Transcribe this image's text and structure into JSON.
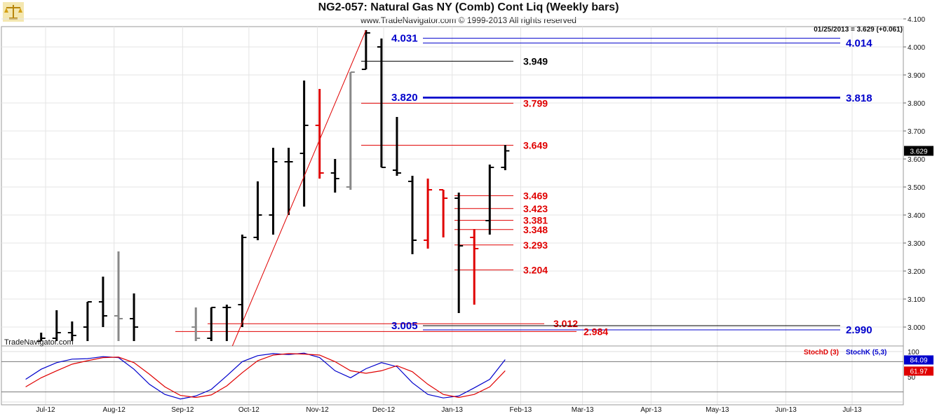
{
  "header": {
    "title": "NG2-057:  Natural Gas NY (Comb) Cont Liq  (Weekly bars)",
    "copyright": "www.TradeNavigator.com © 1999-2013 All rights reserved",
    "last_quote": "01/25/2013 = 3.629 (+0.061)",
    "watermark": "TradeNavigator.com",
    "logo_icon": "scales-icon"
  },
  "colors": {
    "up_bar": "#000000",
    "down_bar": "#e00000",
    "neutral_bar": "#888888",
    "blue_level": "#0000cc",
    "red_level": "#e00000",
    "stoch_d": "#e00000",
    "stoch_k": "#0000cc"
  },
  "chart_data": [
    {
      "type": "bar",
      "subtype": "ohlc",
      "title": "NG2-057:  Natural Gas NY (Comb) Cont Liq  (Weekly bars)",
      "y_axis": {
        "position": "right",
        "range": [
          2.95,
          4.1
        ],
        "ticks": [
          "3.000",
          "3.100",
          "3.200",
          "3.300",
          "3.400",
          "3.500",
          "3.600",
          "3.700",
          "3.800",
          "3.900",
          "4.000",
          "4.100"
        ]
      },
      "x_axis": {
        "ticks": [
          "Jul-12",
          "Aug-12",
          "Sep-12",
          "Oct-12",
          "Nov-12",
          "Dec-12",
          "Jan-13",
          "Feb-13",
          "Mar-13",
          "Apr-13",
          "May-13",
          "Jun-13",
          "Jul-13"
        ]
      },
      "current_price": "3.629",
      "bars": [
        {
          "date": "2012-06-29",
          "o": 2.95,
          "h": 2.98,
          "l": 2.95,
          "c": 2.96,
          "color": "black"
        },
        {
          "date": "2012-07-06",
          "o": 2.96,
          "h": 3.06,
          "l": 2.95,
          "c": 2.98,
          "color": "black"
        },
        {
          "date": "2012-07-13",
          "o": 2.98,
          "h": 3.02,
          "l": 2.95,
          "c": 2.97,
          "color": "black"
        },
        {
          "date": "2012-07-20",
          "o": 3.0,
          "h": 3.09,
          "l": 2.95,
          "c": 3.09,
          "color": "black"
        },
        {
          "date": "2012-07-27",
          "o": 3.09,
          "h": 3.18,
          "l": 3.0,
          "c": 3.04,
          "color": "black"
        },
        {
          "date": "2012-08-03",
          "o": 3.04,
          "h": 3.27,
          "l": 2.95,
          "c": 3.03,
          "color": "gray"
        },
        {
          "date": "2012-08-10",
          "o": 3.03,
          "h": 3.12,
          "l": 2.95,
          "c": 3.0,
          "color": "black"
        },
        {
          "date": "2012-09-07",
          "o": 3.0,
          "h": 3.07,
          "l": 2.95,
          "c": 2.96,
          "color": "gray"
        },
        {
          "date": "2012-09-14",
          "o": 2.96,
          "h": 3.07,
          "l": 2.95,
          "c": 3.07,
          "color": "black"
        },
        {
          "date": "2012-09-21",
          "o": 3.07,
          "h": 3.08,
          "l": 2.95,
          "c": 3.07,
          "color": "black"
        },
        {
          "date": "2012-09-28",
          "o": 3.08,
          "h": 3.33,
          "l": 3.0,
          "c": 3.32,
          "color": "black"
        },
        {
          "date": "2012-10-05",
          "o": 3.32,
          "h": 3.52,
          "l": 3.31,
          "c": 3.4,
          "color": "black"
        },
        {
          "date": "2012-10-12",
          "o": 3.4,
          "h": 3.64,
          "l": 3.33,
          "c": 3.59,
          "color": "black"
        },
        {
          "date": "2012-10-19",
          "o": 3.59,
          "h": 3.64,
          "l": 3.4,
          "c": 3.59,
          "color": "black"
        },
        {
          "date": "2012-10-26",
          "o": 3.62,
          "h": 3.88,
          "l": 3.43,
          "c": 3.72,
          "color": "black"
        },
        {
          "date": "2012-11-02",
          "o": 3.72,
          "h": 3.85,
          "l": 3.53,
          "c": 3.55,
          "color": "red"
        },
        {
          "date": "2012-11-09",
          "o": 3.55,
          "h": 3.6,
          "l": 3.48,
          "c": 3.53,
          "color": "black"
        },
        {
          "date": "2012-11-16",
          "o": 3.5,
          "h": 3.91,
          "l": 3.49,
          "c": 3.91,
          "color": "gray"
        },
        {
          "date": "2012-11-23",
          "o": 3.92,
          "h": 4.06,
          "l": 3.92,
          "c": 4.05,
          "color": "black"
        },
        {
          "date": "2012-11-30",
          "o": 4.0,
          "h": 4.03,
          "l": 3.57,
          "c": 3.57,
          "color": "black"
        },
        {
          "date": "2012-12-07",
          "o": 3.56,
          "h": 3.75,
          "l": 3.54,
          "c": 3.55,
          "color": "black"
        },
        {
          "date": "2012-12-14",
          "o": 3.52,
          "h": 3.54,
          "l": 3.26,
          "c": 3.31,
          "color": "black"
        },
        {
          "date": "2012-12-21",
          "o": 3.31,
          "h": 3.53,
          "l": 3.28,
          "c": 3.49,
          "color": "red"
        },
        {
          "date": "2012-12-28",
          "o": 3.49,
          "h": 3.49,
          "l": 3.32,
          "c": 3.46,
          "color": "red"
        },
        {
          "date": "2013-01-04",
          "o": 3.46,
          "h": 3.48,
          "l": 3.05,
          "c": 3.29,
          "color": "black"
        },
        {
          "date": "2013-01-11",
          "o": 3.32,
          "h": 3.35,
          "l": 3.08,
          "c": 3.28,
          "color": "red"
        },
        {
          "date": "2013-01-18",
          "o": 3.38,
          "h": 3.58,
          "l": 3.33,
          "c": 3.57,
          "color": "black"
        },
        {
          "date": "2013-01-25",
          "o": 3.57,
          "h": 3.65,
          "l": 3.56,
          "c": 3.629,
          "color": "black"
        }
      ],
      "levels": [
        {
          "value": "4.031",
          "color": "blue"
        },
        {
          "value": "4.014",
          "color": "blue"
        },
        {
          "value": "3.949",
          "color": "black"
        },
        {
          "value": "3.820",
          "color": "blue"
        },
        {
          "value": "3.818",
          "color": "blue"
        },
        {
          "value": "3.799",
          "color": "red"
        },
        {
          "value": "3.649",
          "color": "red"
        },
        {
          "value": "3.469",
          "color": "red"
        },
        {
          "value": "3.423",
          "color": "red"
        },
        {
          "value": "3.381",
          "color": "red"
        },
        {
          "value": "3.348",
          "color": "red"
        },
        {
          "value": "3.293",
          "color": "red"
        },
        {
          "value": "3.204",
          "color": "red"
        },
        {
          "value": "3.012",
          "color": "red"
        },
        {
          "value": "3.005",
          "color": "blue"
        },
        {
          "value": "2.990",
          "color": "blue"
        },
        {
          "value": "2.984",
          "color": "red"
        }
      ],
      "trendline": {
        "from": {
          "date": "2012-09-21",
          "price": 2.95
        },
        "to": {
          "date": "2012-11-23",
          "price": 4.06
        },
        "color": "red"
      }
    },
    {
      "type": "line",
      "title": "",
      "y_axis": {
        "range": [
          0,
          100
        ],
        "ticks": [
          "100",
          "50"
        ]
      },
      "legend": [
        "StochD (3)",
        "StochK (5,3)"
      ],
      "last_values": {
        "k": "84.09",
        "d": "61.97"
      },
      "series": [
        {
          "name": "StochK (5,3)",
          "color": "blue",
          "values": [
            [
              "2012-06-22",
              45
            ],
            [
              "2012-06-29",
              65
            ],
            [
              "2012-07-06",
              78
            ],
            [
              "2012-07-13",
              85
            ],
            [
              "2012-07-20",
              86
            ],
            [
              "2012-07-27",
              90
            ],
            [
              "2012-08-03",
              88
            ],
            [
              "2012-08-10",
              65
            ],
            [
              "2012-08-17",
              35
            ],
            [
              "2012-08-24",
              15
            ],
            [
              "2012-08-31",
              6
            ],
            [
              "2012-09-07",
              12
            ],
            [
              "2012-09-14",
              25
            ],
            [
              "2012-09-21",
              52
            ],
            [
              "2012-09-28",
              80
            ],
            [
              "2012-10-05",
              92
            ],
            [
              "2012-10-12",
              96
            ],
            [
              "2012-10-19",
              94
            ],
            [
              "2012-10-26",
              97
            ],
            [
              "2012-11-02",
              88
            ],
            [
              "2012-11-09",
              62
            ],
            [
              "2012-11-16",
              48
            ],
            [
              "2012-11-23",
              66
            ],
            [
              "2012-11-30",
              78
            ],
            [
              "2012-12-07",
              70
            ],
            [
              "2012-12-14",
              38
            ],
            [
              "2012-12-21",
              15
            ],
            [
              "2012-12-28",
              8
            ],
            [
              "2013-01-04",
              12
            ],
            [
              "2013-01-11",
              28
            ],
            [
              "2013-01-18",
              45
            ],
            [
              "2013-01-25",
              84.09
            ]
          ]
        },
        {
          "name": "StochD (3)",
          "color": "red",
          "values": [
            [
              "2012-06-22",
              30
            ],
            [
              "2012-06-29",
              48
            ],
            [
              "2012-07-06",
              62
            ],
            [
              "2012-07-13",
              75
            ],
            [
              "2012-07-20",
              82
            ],
            [
              "2012-07-27",
              88
            ],
            [
              "2012-08-03",
              89
            ],
            [
              "2012-08-10",
              78
            ],
            [
              "2012-08-17",
              55
            ],
            [
              "2012-08-24",
              30
            ],
            [
              "2012-08-31",
              13
            ],
            [
              "2012-09-07",
              9
            ],
            [
              "2012-09-14",
              14
            ],
            [
              "2012-09-21",
              32
            ],
            [
              "2012-09-28",
              58
            ],
            [
              "2012-10-05",
              82
            ],
            [
              "2012-10-12",
              93
            ],
            [
              "2012-10-19",
              96
            ],
            [
              "2012-10-26",
              95
            ],
            [
              "2012-11-02",
              93
            ],
            [
              "2012-11-09",
              80
            ],
            [
              "2012-11-16",
              62
            ],
            [
              "2012-11-23",
              57
            ],
            [
              "2012-11-30",
              62
            ],
            [
              "2012-12-07",
              72
            ],
            [
              "2012-12-14",
              60
            ],
            [
              "2012-12-21",
              35
            ],
            [
              "2012-12-28",
              15
            ],
            [
              "2013-01-04",
              9
            ],
            [
              "2013-01-11",
              15
            ],
            [
              "2013-01-18",
              30
            ],
            [
              "2013-01-25",
              61.97
            ]
          ]
        }
      ]
    }
  ]
}
